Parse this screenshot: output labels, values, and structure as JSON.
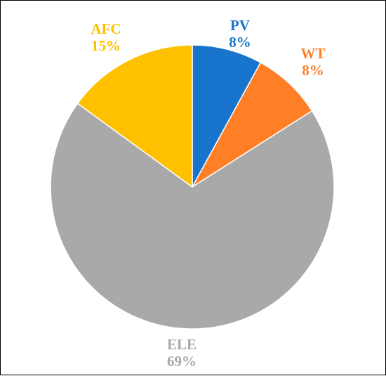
{
  "chart_data": {
    "type": "pie",
    "title": "",
    "legend": "none",
    "start_angle_deg": 0,
    "direction": "clockwise",
    "slices": [
      {
        "name": "PV",
        "value": 8,
        "label": "8%",
        "color": "#1874CD"
      },
      {
        "name": "WT",
        "value": 8,
        "label": "8%",
        "color": "#FF7F27"
      },
      {
        "name": "ELE",
        "value": 69,
        "label": "69%",
        "color": "#A9A9A9"
      },
      {
        "name": "AFC",
        "value": 15,
        "label": "15%",
        "color": "#FFC000"
      }
    ]
  }
}
